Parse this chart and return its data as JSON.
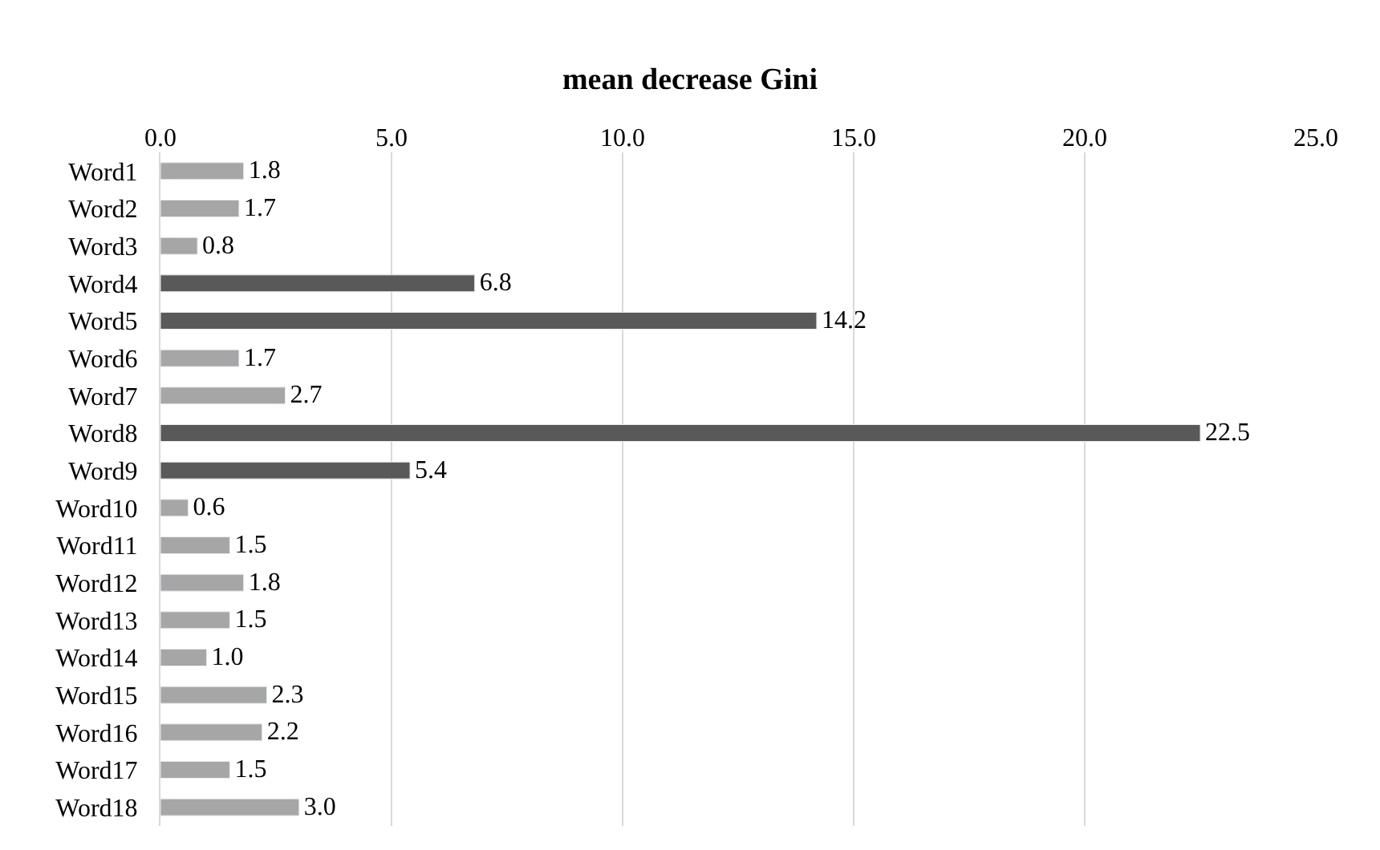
{
  "chart_data": {
    "type": "bar",
    "orientation": "horizontal",
    "title": "mean decrease Gini",
    "categories": [
      "Word1",
      "Word2",
      "Word3",
      "Word4",
      "Word5",
      "Word6",
      "Word7",
      "Word8",
      "Word9",
      "Word10",
      "Word11",
      "Word12",
      "Word13",
      "Word14",
      "Word15",
      "Word16",
      "Word17",
      "Word18"
    ],
    "values": [
      1.8,
      1.7,
      0.8,
      6.8,
      14.2,
      1.7,
      2.7,
      22.5,
      5.4,
      0.6,
      1.5,
      1.8,
      1.5,
      1.0,
      2.3,
      2.2,
      1.5,
      3.0
    ],
    "colors": [
      "#a6a6a6",
      "#a6a6a6",
      "#a6a6a6",
      "#595959",
      "#595959",
      "#a6a6a6",
      "#a6a6a6",
      "#595959",
      "#595959",
      "#a6a6a6",
      "#a6a6a6",
      "#a6a6a6",
      "#a6a6a6",
      "#a6a6a6",
      "#a6a6a6",
      "#a6a6a6",
      "#a6a6a6",
      "#a6a6a6"
    ],
    "xlim": [
      0,
      25
    ],
    "xticks": [
      {
        "value": 0,
        "label": "0.0"
      },
      {
        "value": 5,
        "label": "5.0"
      },
      {
        "value": 10,
        "label": "10.0"
      },
      {
        "value": 15,
        "label": "15.0"
      },
      {
        "value": 20,
        "label": "20.0"
      },
      {
        "value": 25,
        "label": "25.0"
      }
    ],
    "value_labels": [
      "1.8",
      "1.7",
      "0.8",
      "6.8",
      "14.2",
      "1.7",
      "2.7",
      "22.5",
      "5.4",
      "0.6",
      "1.5",
      "1.8",
      "1.5",
      "1.0",
      "2.3",
      "2.2",
      "1.5",
      "3.0"
    ],
    "grid": "x"
  }
}
